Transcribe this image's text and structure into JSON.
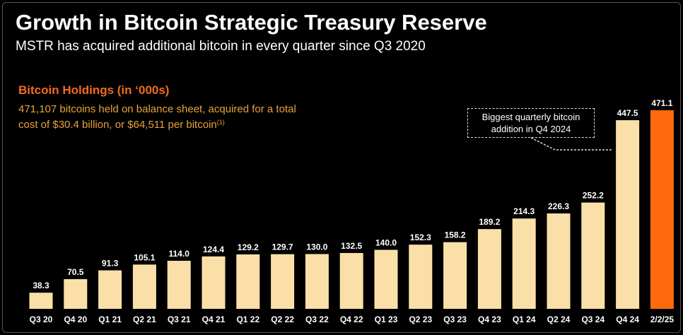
{
  "header": {
    "title": "Growth in Bitcoin Strategic Treasury Reserve",
    "subtitle": "MSTR has acquired additional bitcoin in every quarter since Q3 2020"
  },
  "callout": {
    "line1": "Biggest quarterly bitcoin",
    "line2": "addition in Q4 2024"
  },
  "colors": {
    "bar": "#fae0a8",
    "highlight": "#ff6a0d",
    "title_accent": "#f26b1d",
    "note_text": "#e8a33a"
  },
  "chart_data": {
    "type": "bar",
    "title": "Bitcoin Holdings (in ‘000s)",
    "note": "471,107 bitcoins held on balance sheet, acquired for a total cost of $30.4 billion, or $64,511 per bitcoin",
    "note_superscript": "(1)",
    "categories": [
      "Q3 20",
      "Q4 20",
      "Q1 21",
      "Q2 21",
      "Q3 21",
      "Q4 21",
      "Q1 22",
      "Q2 22",
      "Q3 22",
      "Q4 22",
      "Q1 23",
      "Q2 23",
      "Q3 23",
      "Q4 23",
      "Q1 24",
      "Q2 24",
      "Q3 24",
      "Q4 24",
      "2/2/25"
    ],
    "values": [
      38.3,
      70.5,
      91.3,
      105.1,
      114.0,
      124.4,
      129.2,
      129.7,
      130.0,
      132.5,
      140.0,
      152.3,
      158.2,
      189.2,
      214.3,
      226.3,
      252.2,
      447.5,
      471.1
    ],
    "value_labels": [
      "38.3",
      "70.5",
      "91.3",
      "105.1",
      "114.0",
      "124.4",
      "129.2",
      "129.7",
      "130.0",
      "132.5",
      "140.0",
      "152.3",
      "158.2",
      "189.2",
      "214.3",
      "226.3",
      "252.2",
      "447.5",
      "471.1"
    ],
    "highlight_index": 18,
    "ylim": [
      0,
      471.1
    ],
    "xlabel": "",
    "ylabel": "",
    "grid": false
  }
}
